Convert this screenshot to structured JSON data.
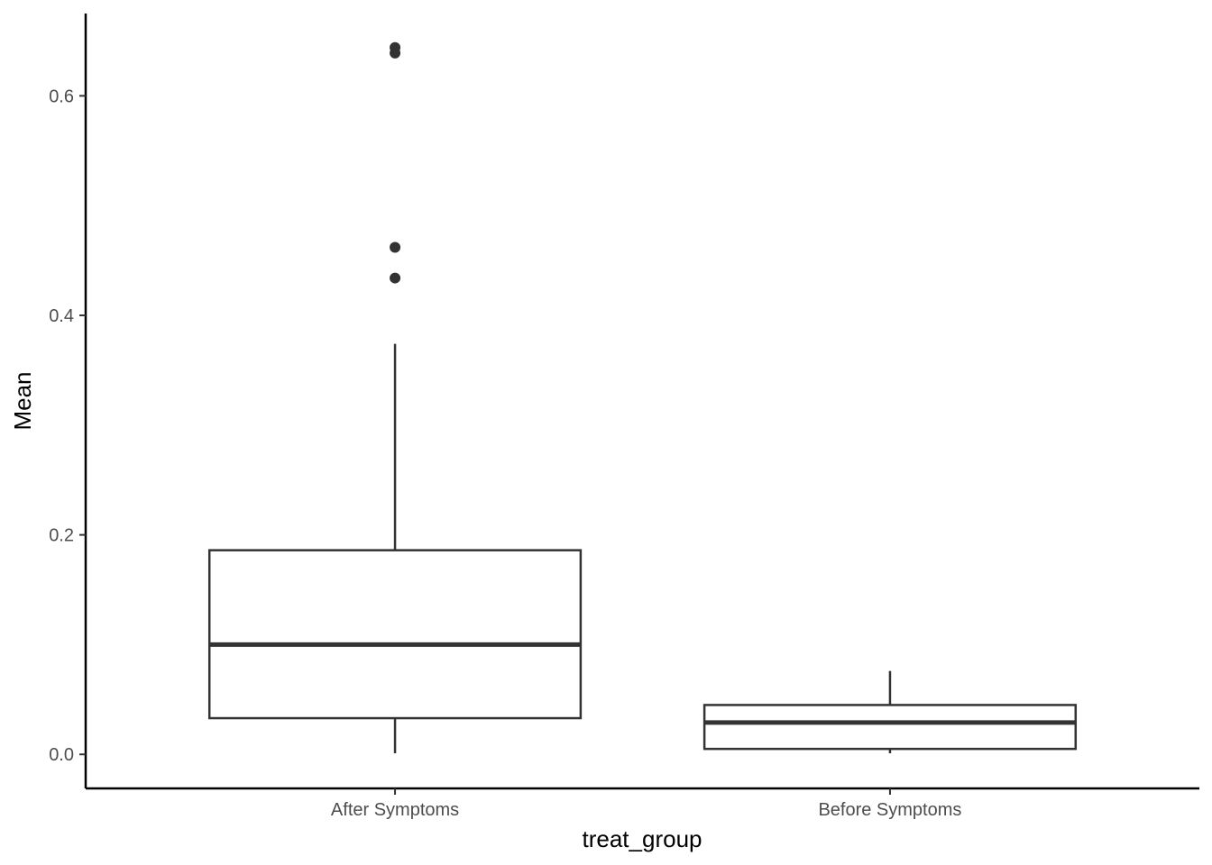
{
  "chart_data": {
    "type": "boxplot",
    "title": "",
    "xlabel": "treat_group",
    "ylabel": "Mean",
    "ylim": [
      -0.031,
      0.675
    ],
    "yticks": [
      0.0,
      0.2,
      0.4,
      0.6
    ],
    "ytick_labels": [
      "0.0",
      "0.2",
      "0.4",
      "0.6"
    ],
    "grid": false,
    "legend": "none",
    "categories": [
      "After Symptoms",
      "Before Symptoms"
    ],
    "boxes": [
      {
        "category": "After Symptoms",
        "whisker_low": 0.001,
        "q1": 0.033,
        "median": 0.1,
        "q3": 0.186,
        "whisker_high": 0.374,
        "outliers": [
          0.434,
          0.462,
          0.639,
          0.644
        ]
      },
      {
        "category": "Before Symptoms",
        "whisker_low": 0.001,
        "q1": 0.005,
        "median": 0.029,
        "q3": 0.045,
        "whisker_high": 0.076,
        "outliers": []
      }
    ],
    "colors": {
      "box_stroke": "#333333",
      "box_fill": "#ffffff",
      "axis": "#000000",
      "point": "#333333"
    }
  }
}
